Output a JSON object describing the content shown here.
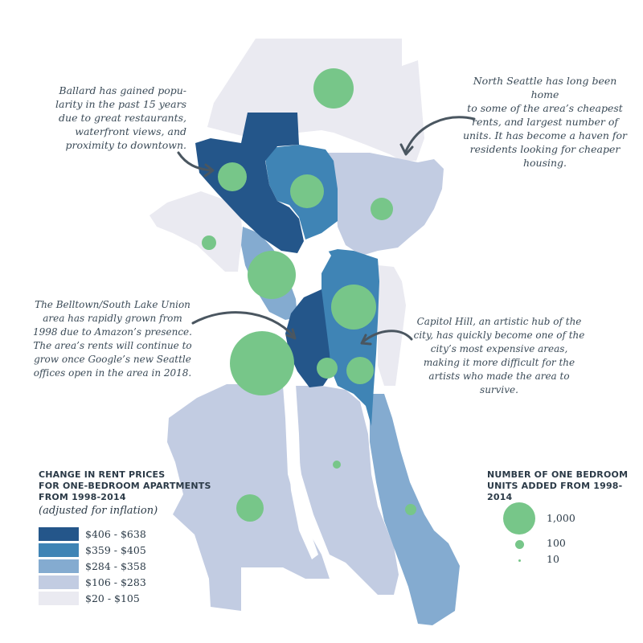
{
  "colors": {
    "tier1": "#24568a",
    "tier2": "#3f84b5",
    "tier3": "#84abd0",
    "tier4": "#c2cce2",
    "tier5": "#eaeaf1",
    "circle": "#77c689",
    "water": "#ffffff"
  },
  "annotations": {
    "ballard": [
      "Ballard has gained popu-",
      "larity in the past 15 years",
      "due to great restaurants,",
      "waterfront views, and",
      "proximity to downtown."
    ],
    "north_seattle": [
      "North Seattle has long been home",
      "to some of the area’s cheapest",
      "rents, and largest number of",
      "units. It has become a haven for",
      "residents looking for cheaper",
      "housing."
    ],
    "belltown": [
      "The Belltown/South Lake Union",
      "area has rapidly grown from",
      "1998 due to Amazon’s presence.",
      "The area’s rents will continue to",
      "grow once Google’s new Seattle",
      "offices open in the area in 2018."
    ],
    "capitol_hill": [
      "Capitol Hill, an artistic hub of the",
      "city, has quickly become one of the",
      "city’s most expensive areas,",
      "making it more difficult for the",
      "artists who made the area to",
      "survive."
    ]
  },
  "rent_legend": {
    "title": [
      "CHANGE IN RENT PRICES",
      "FOR ONE-BEDROOM APARTMENTS",
      "FROM 1998-2014"
    ],
    "subtitle": "(adjusted for inflation)",
    "items": [
      {
        "label": "$406 - $638",
        "color": "#24568a"
      },
      {
        "label": "$359 - $405",
        "color": "#3f84b5"
      },
      {
        "label": "$284 - $358",
        "color": "#84abd0"
      },
      {
        "label": "$106 - $283",
        "color": "#c2cce2"
      },
      {
        "label": "$20 - $105",
        "color": "#eaeaf1"
      }
    ]
  },
  "units_legend": {
    "title": [
      "NUMBER OF ONE BEDROOM",
      "UNITS ADDED FROM 1998-2014"
    ],
    "items": [
      {
        "label": "1,000",
        "value": 1000
      },
      {
        "label": "100",
        "value": 100
      },
      {
        "label": "10",
        "value": 10
      }
    ]
  }
}
